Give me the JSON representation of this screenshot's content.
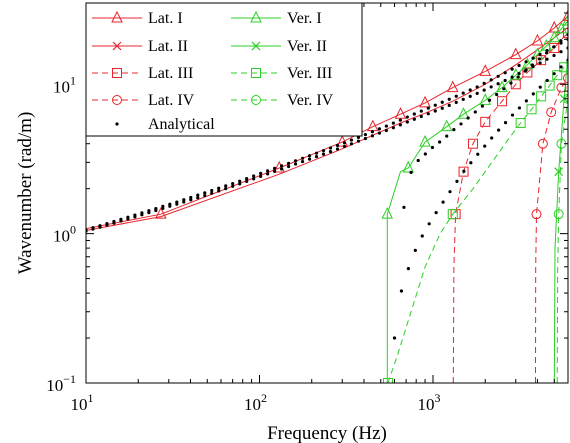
{
  "chart_data": {
    "type": "line",
    "xlabel": "Frequency (Hz)",
    "ylabel": "Wavenumber (rad/m)",
    "xscale": "log",
    "yscale": "log",
    "xlim": [
      10,
      6000
    ],
    "ylim": [
      0.1,
      35
    ],
    "grid": false,
    "legend_position": "top-left",
    "x_ticks": [
      {
        "base": "10",
        "exp": "1",
        "value": 10
      },
      {
        "base": "10",
        "exp": "2",
        "value": 100
      },
      {
        "base": "10",
        "exp": "3",
        "value": 1000
      }
    ],
    "y_ticks": [
      {
        "base": "10",
        "exp": "−1",
        "value": 0.1
      },
      {
        "base": "10",
        "exp": "0",
        "value": 1
      },
      {
        "base": "10",
        "exp": "1",
        "value": 10
      }
    ],
    "series": [
      {
        "name": "Lat. I",
        "color": "#e8242c",
        "dash": "solid",
        "marker": "triangle",
        "x": [
          10,
          27,
          130,
          300,
          450,
          650,
          900,
          1300,
          2000,
          3000,
          4000,
          5000,
          6000
        ],
        "y": [
          1.08,
          1.35,
          2.75,
          4.1,
          5.2,
          6.3,
          7.5,
          9.5,
          12.2,
          15.8,
          19.5,
          23.8,
          28.5
        ],
        "marker_x": [
          27,
          130,
          300,
          450,
          650,
          900,
          1300,
          2000,
          3000,
          4000,
          5000,
          6000
        ]
      },
      {
        "name": "Lat. II",
        "color": "#e8242c",
        "dash": "solid",
        "marker": "x",
        "x": [
          10,
          27,
          130,
          300,
          650,
          900,
          1300,
          2000,
          3000,
          4000,
          5000,
          6000
        ],
        "y": [
          1.05,
          1.3,
          2.5,
          3.7,
          5.5,
          6.4,
          7.7,
          10.0,
          13.5,
          17.0,
          20.5,
          24.0
        ],
        "marker_x": []
      },
      {
        "name": "Lat. III",
        "color": "#e8242c",
        "dash": "dashed",
        "marker": "square",
        "x": [
          1310,
          1320,
          1350,
          1500,
          1700,
          2000,
          2500,
          3000,
          3500,
          4200,
          5000,
          5500,
          6000
        ],
        "y": [
          0.1,
          0.6,
          1.35,
          2.6,
          4.0,
          5.6,
          7.7,
          10.0,
          12.0,
          14.5,
          17.5,
          20.0,
          22.0
        ],
        "marker_x": [
          1350,
          1500,
          1700,
          2000,
          2500,
          3000,
          3500,
          4200,
          5000,
          6000
        ]
      },
      {
        "name": "Lat. IV",
        "color": "#e8242c",
        "dash": "dashed",
        "marker": "circle",
        "x": [
          3900,
          3910,
          3950,
          4300,
          4800,
          5500,
          6000
        ],
        "y": [
          0.1,
          0.6,
          1.35,
          4.0,
          6.5,
          9.5,
          11.0
        ],
        "marker_x": [
          3950,
          4300,
          4800,
          5500,
          6000
        ]
      },
      {
        "name": "Ver. I",
        "color": "#2ccf25",
        "dash": "solid",
        "marker": "triangle",
        "x": [
          545,
          545,
          650,
          720,
          900,
          1200,
          1500,
          2000,
          2500,
          3000,
          3500,
          4000,
          4500,
          5000,
          5500,
          6000
        ],
        "y": [
          0.1,
          1.35,
          2.6,
          2.75,
          4.1,
          5.2,
          6.3,
          7.8,
          9.5,
          11.5,
          13.5,
          15.8,
          18.0,
          20.5,
          23.5,
          26.5
        ],
        "marker_x": [
          545,
          720,
          900,
          1200,
          1500,
          2000,
          2500,
          3000,
          3500,
          4000,
          4500,
          5000,
          5500,
          6000
        ]
      },
      {
        "name": "Ver. II",
        "color": "#2ccf25",
        "dash": "solid",
        "marker": "x",
        "x": [
          5000,
          5050,
          5300,
          5700,
          6000
        ],
        "y": [
          0.1,
          0.8,
          2.6,
          8.0,
          16.0
        ],
        "marker_x": [
          5300,
          5700
        ]
      },
      {
        "name": "Ver. III",
        "color": "#2ccf25",
        "dash": "dashed",
        "marker": "square",
        "x": [
          550,
          620,
          900,
          1100,
          1300,
          1700,
          2000,
          2400,
          2800,
          3200,
          3700,
          4200,
          4700,
          5200,
          5700,
          6000
        ],
        "y": [
          0.1,
          0.15,
          0.6,
          1.0,
          1.35,
          2.0,
          2.6,
          3.5,
          4.5,
          5.5,
          6.8,
          8.3,
          9.8,
          11.5,
          13.0,
          14.5
        ],
        "marker_x": [
          550,
          1300,
          3200,
          3700,
          4200,
          4700,
          5200,
          5700
        ]
      },
      {
        "name": "Ver. IV",
        "color": "#2ccf25",
        "dash": "dashed",
        "marker": "circle",
        "x": [
          5200,
          5230,
          5300,
          5500,
          6000
        ],
        "y": [
          0.1,
          0.6,
          1.35,
          4.0,
          8.0
        ],
        "marker_x": [
          5300,
          5500,
          6000
        ]
      },
      {
        "name": "Analytical",
        "color": "#000000",
        "dash": "none",
        "marker": "dot",
        "segments": [
          {
            "x": [
              10,
              15,
              22,
              33,
              50,
              75,
              110,
              165,
              250,
              370,
              550,
              800,
              1200,
              1800,
              2700,
              4000,
              6000
            ],
            "y": [
              1.06,
              1.22,
              1.4,
              1.62,
              1.9,
              2.22,
              2.62,
              3.1,
              3.7,
              4.4,
              5.3,
              6.4,
              7.8,
              9.6,
              12.2,
              15.5,
              20.0
            ]
          },
          {
            "x": [
              10,
              15,
              22,
              33,
              50,
              75,
              110,
              165,
              250,
              370,
              550,
              800,
              1200,
              1800,
              2700,
              4000,
              6000
            ],
            "y": [
              1.04,
              1.19,
              1.36,
              1.57,
              1.82,
              2.13,
              2.5,
              2.95,
              3.5,
              4.15,
              4.95,
              5.9,
              7.1,
              8.7,
              10.8,
              13.6,
              17.5
            ]
          },
          {
            "x": [
              600,
              620,
              660,
              720,
              800,
              900,
              1050,
              1250,
              1500,
              1850,
              2300,
              2900,
              3700,
              4700,
              6000
            ],
            "y": [
              0.2,
              0.3,
              0.42,
              0.58,
              0.8,
              1.05,
              1.4,
              1.9,
              2.6,
              3.5,
              4.7,
              6.3,
              8.4,
              11.0,
              14.5
            ]
          },
          {
            "x": [
              680,
              700,
              720,
              760,
              800,
              900,
              1000,
              1150,
              1300,
              1500,
              1800,
              2200,
              2700,
              3300,
              4000,
              5000,
              6000
            ],
            "y": [
              1.5,
              1.9,
              2.3,
              2.7,
              3.0,
              3.4,
              3.8,
              4.3,
              4.9,
              5.6,
              6.7,
              8.1,
              9.8,
              11.9,
              14.4,
              17.9,
              21.5
            ]
          }
        ]
      }
    ]
  }
}
